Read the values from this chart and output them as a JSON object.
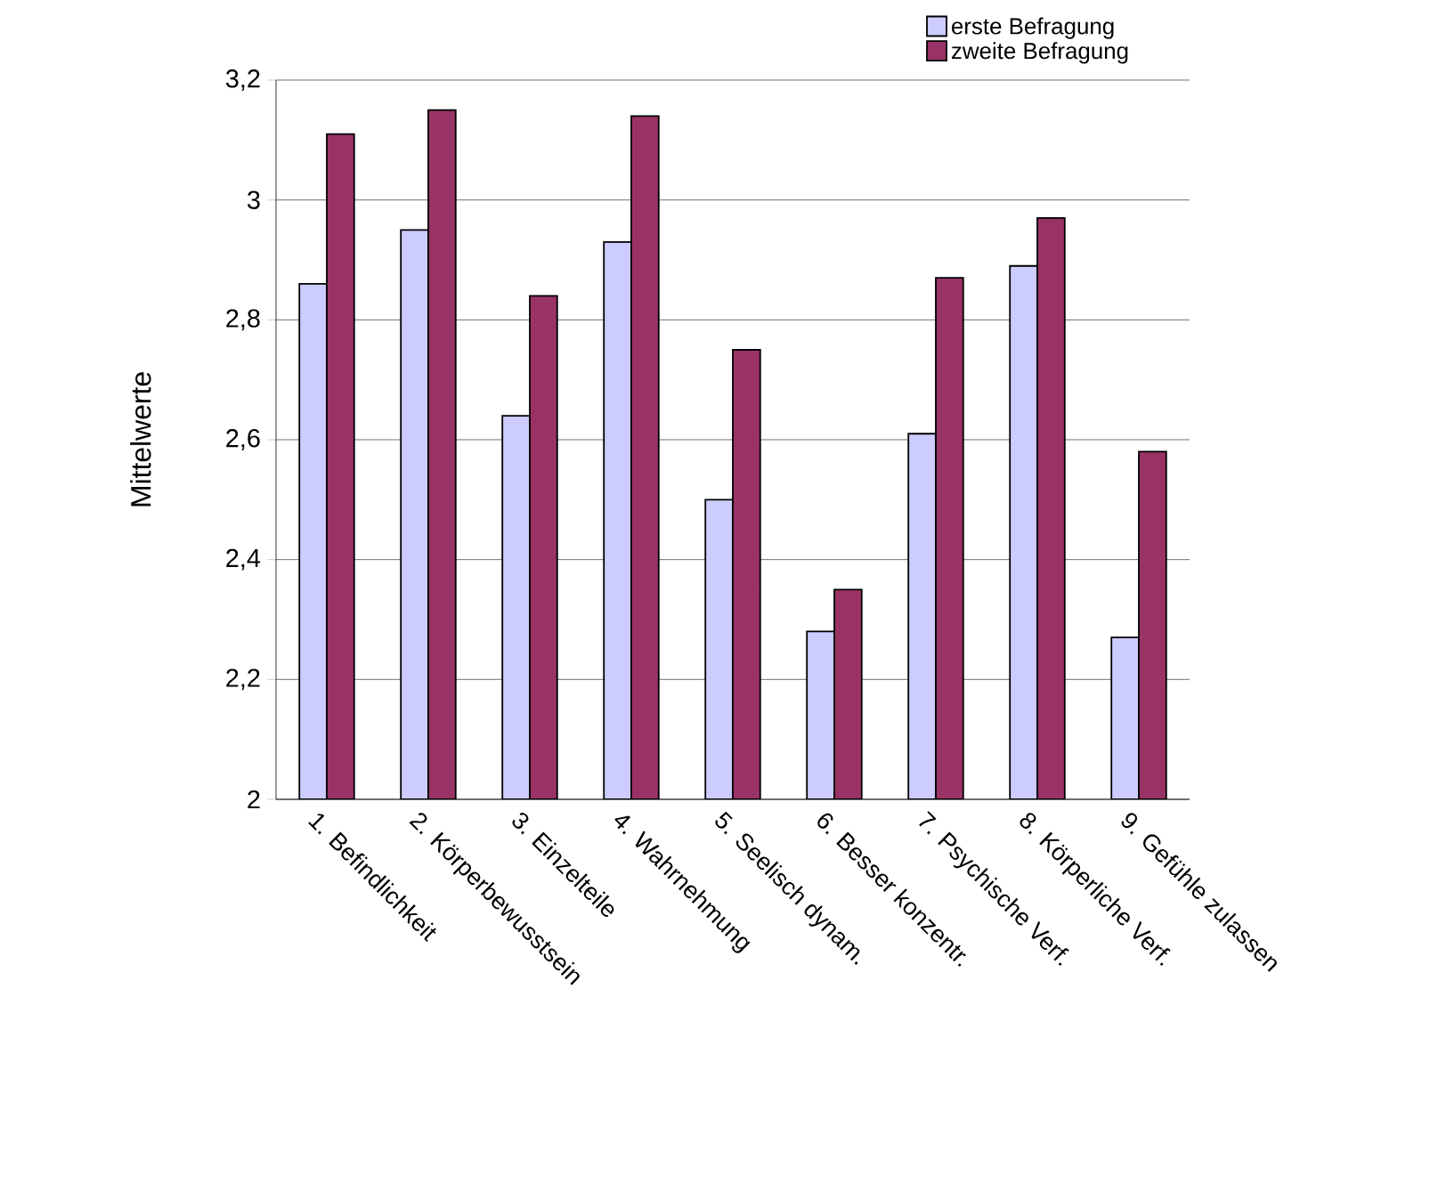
{
  "chart_data": {
    "type": "bar",
    "ylabel": "Mittelwerte",
    "categories": [
      "1. Befindlichkeit",
      "2. Körperbewusstsein",
      "3. Einzelteile",
      "4. Wahrnehmung",
      "5. Seelisch dynam.",
      "6. Besser konzentr.",
      "7. Psychische Verf.",
      "8. Körperliche Verf.",
      "9. Gefühle zulassen"
    ],
    "series": [
      {
        "name": "erste Befragung",
        "color": "#ccccff",
        "values": [
          2.86,
          2.95,
          2.64,
          2.93,
          2.5,
          2.28,
          2.61,
          2.89,
          2.27
        ]
      },
      {
        "name": "zweite Befragung",
        "color": "#993366",
        "values": [
          3.11,
          3.15,
          2.84,
          3.14,
          2.75,
          2.35,
          2.87,
          2.97,
          2.58
        ]
      }
    ],
    "ylim": [
      2,
      3.2
    ],
    "yticks": [
      2,
      {
        "value": 2.2,
        "label": "2,2"
      },
      {
        "value": 2.4,
        "label": "2,4"
      },
      {
        "value": 2.6,
        "label": "2,6"
      },
      {
        "value": 2.8,
        "label": "2,8"
      },
      3,
      {
        "value": 3.2,
        "label": "3,2"
      }
    ],
    "grid": "y",
    "legend": "top right"
  }
}
